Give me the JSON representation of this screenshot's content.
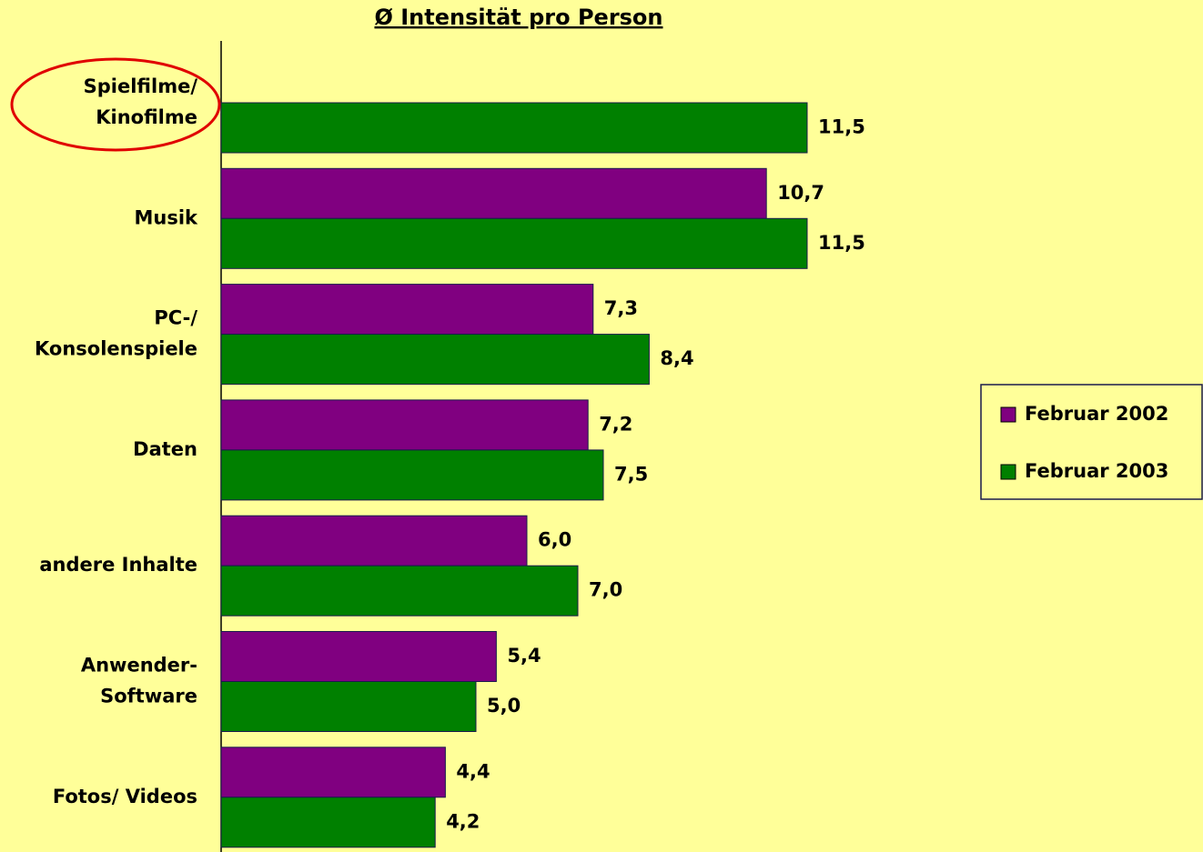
{
  "chart_data": {
    "type": "hbar",
    "title": "Ø Intensität pro Person",
    "categories": [
      "Spielfilme/\nKinofilme",
      "Musik",
      "PC-/\nKonsolenspiele",
      "Daten",
      "andere Inhalte",
      "Anwender-\nSoftware",
      "Fotos/ Videos"
    ],
    "series": [
      {
        "name": "Februar 2002",
        "color": "#800080",
        "values": [
          null,
          10.7,
          7.3,
          7.2,
          6.0,
          5.4,
          4.4
        ],
        "value_labels": [
          null,
          "10,7",
          "7,3",
          "7,2",
          "6,0",
          "5,4",
          "4,4"
        ]
      },
      {
        "name": "Februar 2003",
        "color": "#008000",
        "values": [
          11.5,
          11.5,
          8.4,
          7.5,
          7.0,
          5.0,
          4.2
        ],
        "value_labels": [
          "11,5",
          "11,5",
          "8,4",
          "7,5",
          "7,0",
          "5,0",
          "4,2"
        ]
      }
    ],
    "xlim": [
      0,
      19
    ],
    "legend": "right"
  }
}
